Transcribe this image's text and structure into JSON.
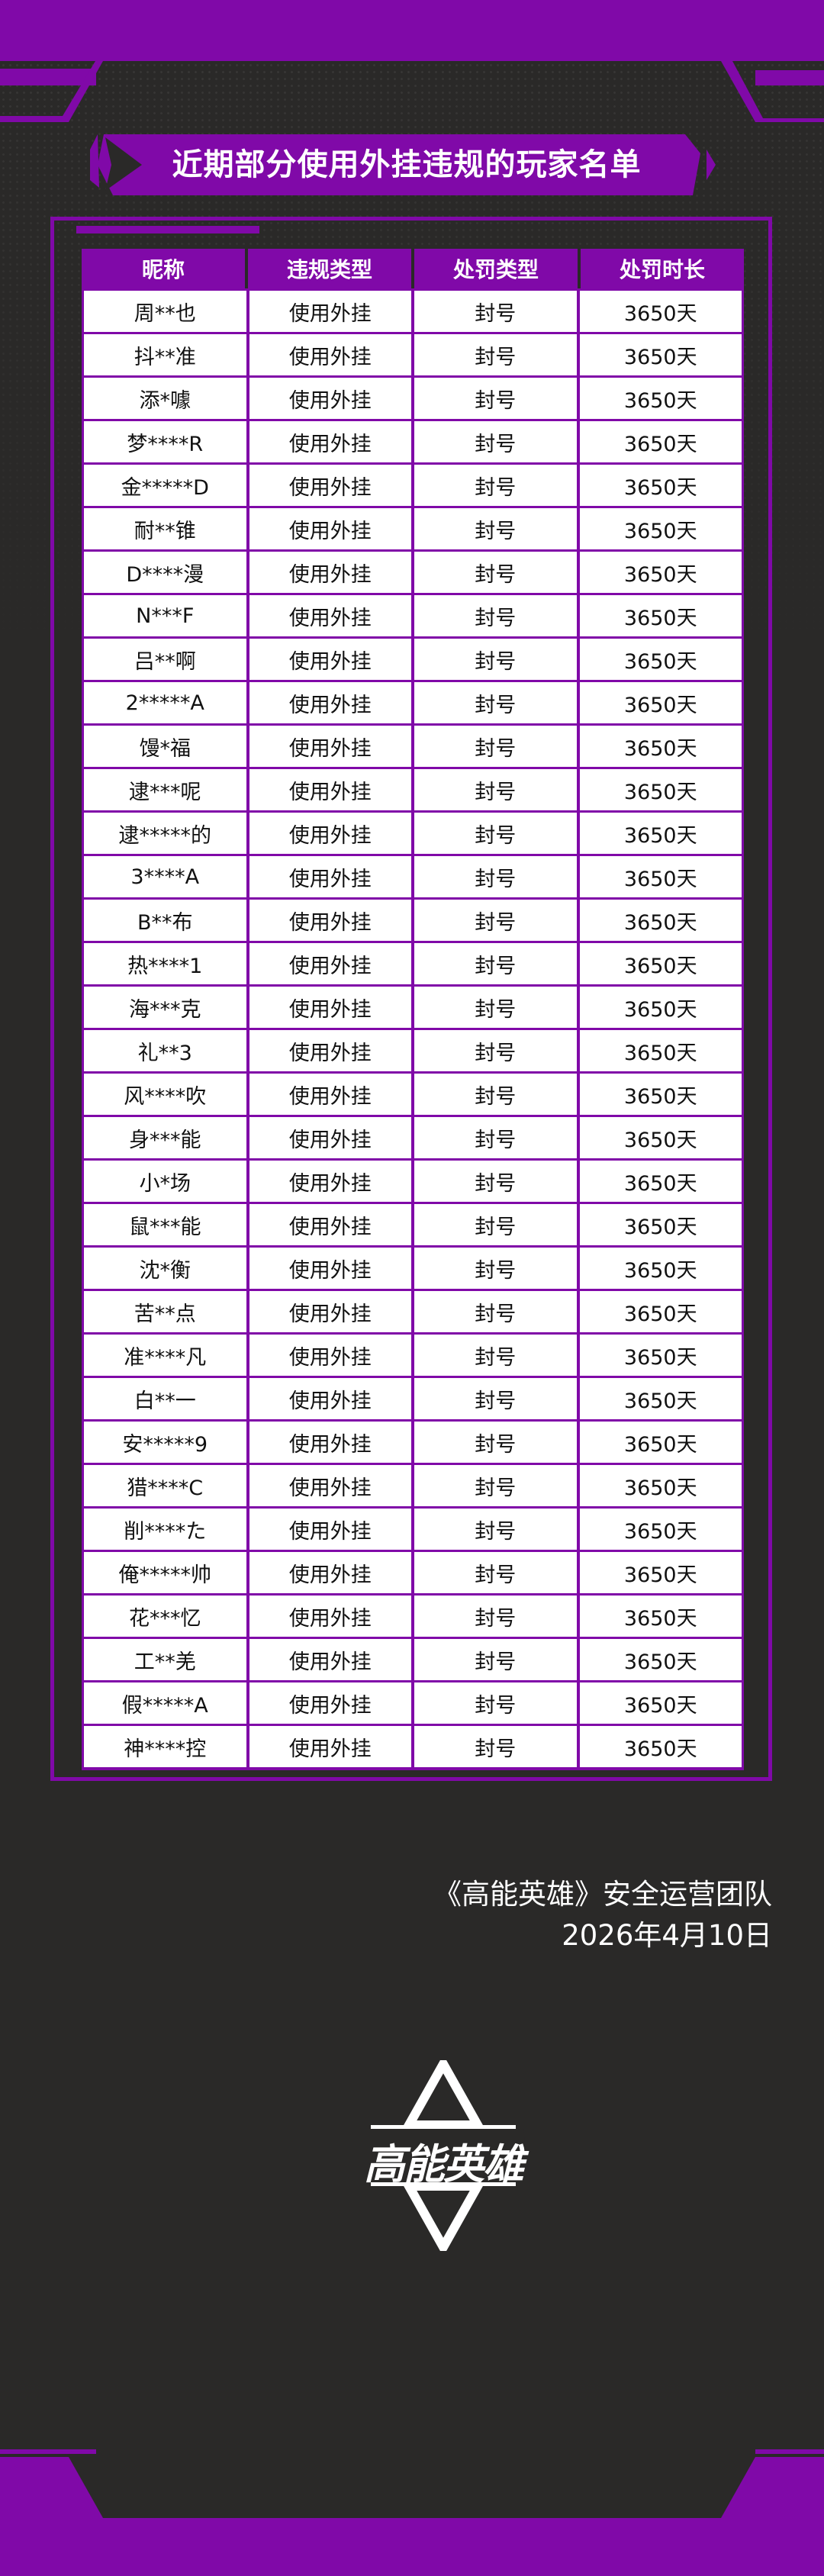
{
  "colors": {
    "accent": "#8009a8",
    "background": "#2a2928",
    "cell": "#ffffff"
  },
  "title": "近期部分使用外挂违规的玩家名单",
  "table": {
    "headers": [
      "昵称",
      "违规类型",
      "处罚类型",
      "处罚时长"
    ],
    "rows": [
      [
        "周**也",
        "使用外挂",
        "封号",
        "3650天"
      ],
      [
        "抖**准",
        "使用外挂",
        "封号",
        "3650天"
      ],
      [
        "添*噱",
        "使用外挂",
        "封号",
        "3650天"
      ],
      [
        "梦****R",
        "使用外挂",
        "封号",
        "3650天"
      ],
      [
        "金*****D",
        "使用外挂",
        "封号",
        "3650天"
      ],
      [
        "耐**锥",
        "使用外挂",
        "封号",
        "3650天"
      ],
      [
        "D****漫",
        "使用外挂",
        "封号",
        "3650天"
      ],
      [
        "N***F",
        "使用外挂",
        "封号",
        "3650天"
      ],
      [
        "吕**啊",
        "使用外挂",
        "封号",
        "3650天"
      ],
      [
        "2*****A",
        "使用外挂",
        "封号",
        "3650天"
      ],
      [
        "馒*福",
        "使用外挂",
        "封号",
        "3650天"
      ],
      [
        "逮***呢",
        "使用外挂",
        "封号",
        "3650天"
      ],
      [
        "逮*****的",
        "使用外挂",
        "封号",
        "3650天"
      ],
      [
        "3****A",
        "使用外挂",
        "封号",
        "3650天"
      ],
      [
        "B**布",
        "使用外挂",
        "封号",
        "3650天"
      ],
      [
        "热****1",
        "使用外挂",
        "封号",
        "3650天"
      ],
      [
        "海***克",
        "使用外挂",
        "封号",
        "3650天"
      ],
      [
        "礼**3",
        "使用外挂",
        "封号",
        "3650天"
      ],
      [
        "风****吹",
        "使用外挂",
        "封号",
        "3650天"
      ],
      [
        "身***能",
        "使用外挂",
        "封号",
        "3650天"
      ],
      [
        "小*场",
        "使用外挂",
        "封号",
        "3650天"
      ],
      [
        "鼠***能",
        "使用外挂",
        "封号",
        "3650天"
      ],
      [
        "沈*衡",
        "使用外挂",
        "封号",
        "3650天"
      ],
      [
        "苦**点",
        "使用外挂",
        "封号",
        "3650天"
      ],
      [
        "准****凡",
        "使用外挂",
        "封号",
        "3650天"
      ],
      [
        "白**一",
        "使用外挂",
        "封号",
        "3650天"
      ],
      [
        "安*****9",
        "使用外挂",
        "封号",
        "3650天"
      ],
      [
        "猎****C",
        "使用外挂",
        "封号",
        "3650天"
      ],
      [
        "削****た",
        "使用外挂",
        "封号",
        "3650天"
      ],
      [
        "俺*****帅",
        "使用外挂",
        "封号",
        "3650天"
      ],
      [
        "花***忆",
        "使用外挂",
        "封号",
        "3650天"
      ],
      [
        "工**羌",
        "使用外挂",
        "封号",
        "3650天"
      ],
      [
        "假*****A",
        "使用外挂",
        "封号",
        "3650天"
      ],
      [
        "神****控",
        "使用外挂",
        "封号",
        "3650天"
      ]
    ]
  },
  "footer": {
    "team": "《高能英雄》安全运营团队",
    "date": "2026年4月10日"
  },
  "logo": {
    "text": "高能英雄",
    "icon": "game-logo-star"
  }
}
